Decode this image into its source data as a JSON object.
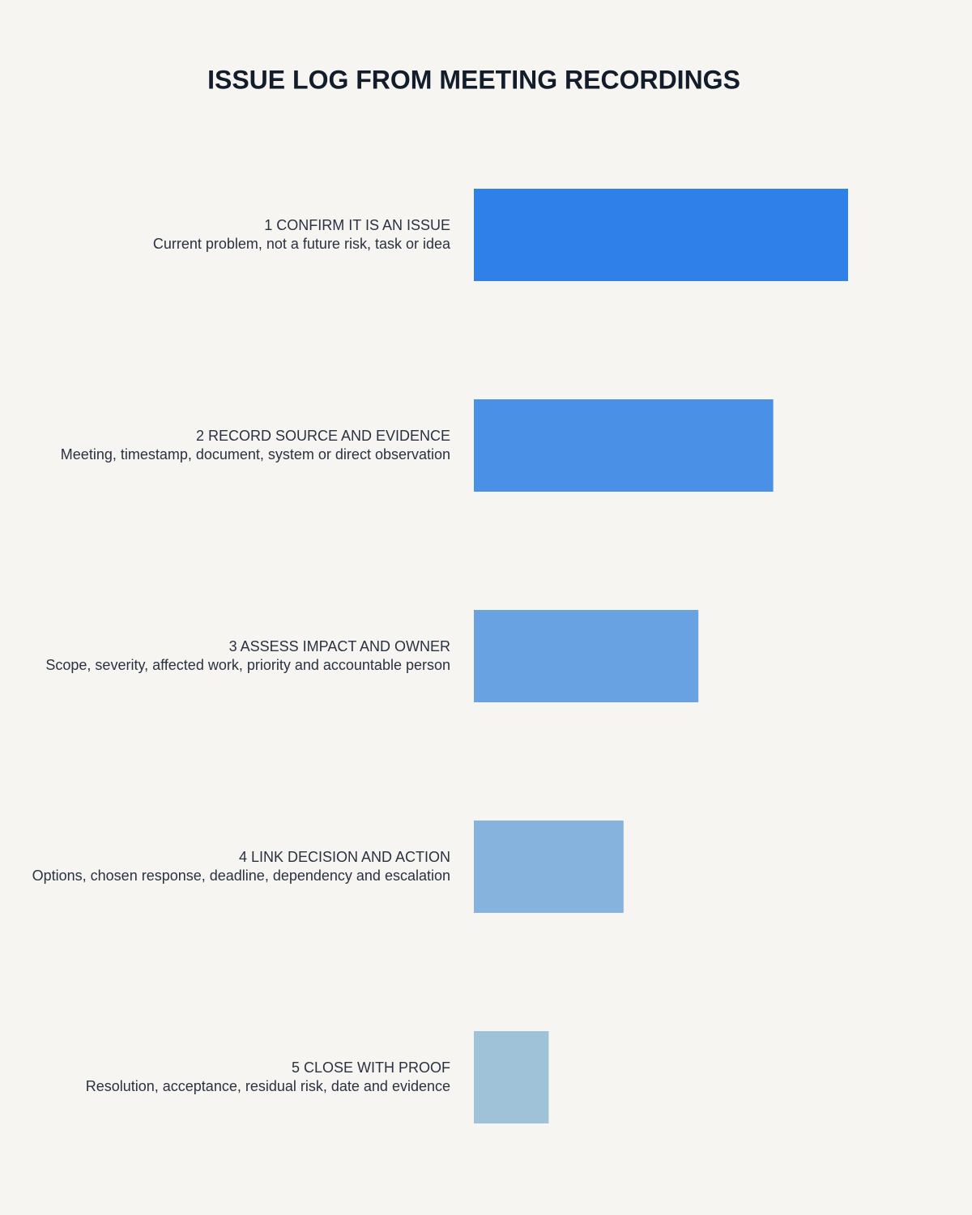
{
  "chart_data": {
    "type": "bar",
    "orientation": "horizontal",
    "title": "ISSUE LOG FROM MEETING RECORDINGS",
    "categories": [
      "1 CONFIRM IT IS AN ISSUE",
      "2 RECORD SOURCE AND EVIDENCE",
      "3 ASSESS IMPACT AND OWNER",
      "4 LINK DECISION AND ACTION",
      "5 CLOSE WITH PROOF"
    ],
    "descriptions": [
      "Current problem, not a future risk, task or idea",
      "Meeting, timestamp, document, system or direct observation",
      "Scope, severity, affected work, priority and accountable person",
      "Options, chosen response, deadline, dependency and escalation",
      "Resolution, acceptance, residual risk, date and evidence"
    ],
    "values": [
      5,
      4,
      3,
      2,
      1
    ],
    "colors": [
      "#3080ea",
      "#4a90e6",
      "#68a2e2",
      "#86b2de",
      "#a0c2d8"
    ]
  }
}
